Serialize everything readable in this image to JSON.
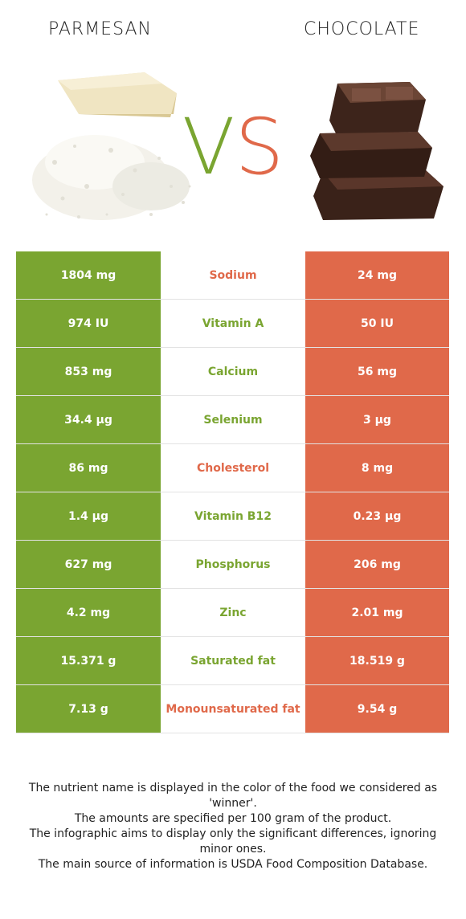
{
  "header": {
    "left_title": "PARMESAN",
    "right_title": "CHOCOLATE",
    "vs_v": "V",
    "vs_s": "S"
  },
  "colors": {
    "left_winner": "#7aa531",
    "right_winner": "#e0694a"
  },
  "rows": [
    {
      "left": "1804 mg",
      "name": "Sodium",
      "right": "24 mg",
      "winner": "right"
    },
    {
      "left": "974 IU",
      "name": "Vitamin A",
      "right": "50 IU",
      "winner": "left"
    },
    {
      "left": "853 mg",
      "name": "Calcium",
      "right": "56 mg",
      "winner": "left"
    },
    {
      "left": "34.4 µg",
      "name": "Selenium",
      "right": "3 µg",
      "winner": "left"
    },
    {
      "left": "86 mg",
      "name": "Cholesterol",
      "right": "8 mg",
      "winner": "right"
    },
    {
      "left": "1.4 µg",
      "name": "Vitamin B12",
      "right": "0.23 µg",
      "winner": "left"
    },
    {
      "left": "627 mg",
      "name": "Phosphorus",
      "right": "206 mg",
      "winner": "left"
    },
    {
      "left": "4.2 mg",
      "name": "Zinc",
      "right": "2.01 mg",
      "winner": "left"
    },
    {
      "left": "15.371 g",
      "name": "Saturated fat",
      "right": "18.519 g",
      "winner": "left"
    },
    {
      "left": "7.13 g",
      "name": "Monounsaturated fat",
      "right": "9.54 g",
      "winner": "right"
    }
  ],
  "footer": {
    "line1": "The nutrient name is displayed in the color of the food we considered as 'winner'.",
    "line2": "The amounts are specified per 100 gram of the product.",
    "line3": "The infographic aims to display only the significant differences, ignoring minor ones.",
    "line4": "The main source of information is USDA Food Composition Database."
  }
}
